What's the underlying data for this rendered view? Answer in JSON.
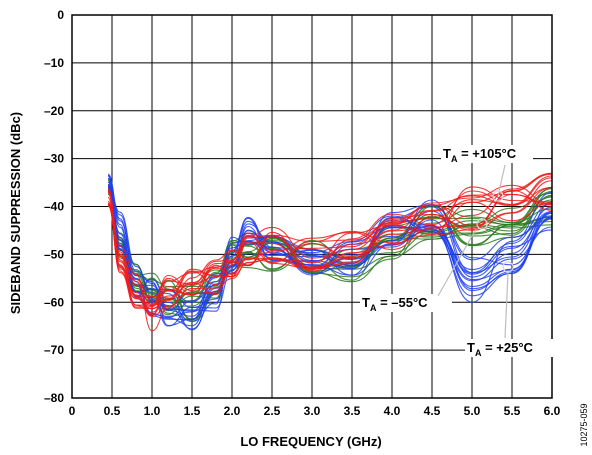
{
  "chart_data": {
    "type": "line",
    "title": "",
    "xlabel": "LO FREQUENCY (GHz)",
    "ylabel": "SIDEBAND SUPPRESSION (dBc)",
    "xlim": [
      0,
      6
    ],
    "ylim": [
      -80,
      0
    ],
    "x_ticks": [
      "0",
      "0.5",
      "1.0",
      "1.5",
      "2.0",
      "2.5",
      "3.0",
      "3.5",
      "4.0",
      "4.5",
      "5.0",
      "5.5",
      "6.0"
    ],
    "x_tick_values": [
      0,
      0.5,
      1.0,
      1.5,
      2.0,
      2.5,
      3.0,
      3.5,
      4.0,
      4.5,
      5.0,
      5.5,
      6.0
    ],
    "y_ticks": [
      "0",
      "–10",
      "–20",
      "–30",
      "–40",
      "–50",
      "–60",
      "–70",
      "–80"
    ],
    "y_tick_values": [
      0,
      -10,
      -20,
      -30,
      -40,
      -50,
      -60,
      -70,
      -80
    ],
    "grid": true,
    "x": [
      0.45,
      0.6,
      0.8,
      1.0,
      1.2,
      1.5,
      1.8,
      2.0,
      2.2,
      2.5,
      3.0,
      3.5,
      4.0,
      4.5,
      5.0,
      5.5,
      6.0
    ],
    "series": [
      {
        "name": "T_A = –55°C",
        "color": "#2b7a1f",
        "values": [
          -36,
          -47,
          -54,
          -57,
          -59,
          -60,
          -57,
          -51,
          -49,
          -50,
          -51,
          -52,
          -47,
          -43,
          -44,
          -43,
          -40
        ]
      },
      {
        "name": "T_A = +25°C",
        "color": "#1f3ff0",
        "values": [
          -35,
          -45,
          -55,
          -59,
          -61,
          -62,
          -58,
          -50,
          -46,
          -48,
          -51,
          -51,
          -45,
          -42,
          -55,
          -50,
          -41
        ]
      },
      {
        "name": "T_A = +105°C",
        "color": "#f01b1b",
        "values": [
          -38,
          -50,
          -58,
          -62,
          -58,
          -56,
          -55,
          -53,
          -49,
          -48,
          -50,
          -49,
          -45,
          -43,
          -40,
          -39,
          -37
        ]
      }
    ],
    "annotations": [
      {
        "base": "T",
        "sub": "A",
        "text": " = +105°C"
      },
      {
        "base": "T",
        "sub": "A",
        "text": " = –55°C"
      },
      {
        "base": "T",
        "sub": "A",
        "text": " = +25°C"
      }
    ],
    "figure_id": "10275-059"
  },
  "colors": {
    "neg55": "#2b7a1f",
    "p25": "#1f3ff0",
    "p105": "#f01b1b",
    "grid": "#000000"
  }
}
